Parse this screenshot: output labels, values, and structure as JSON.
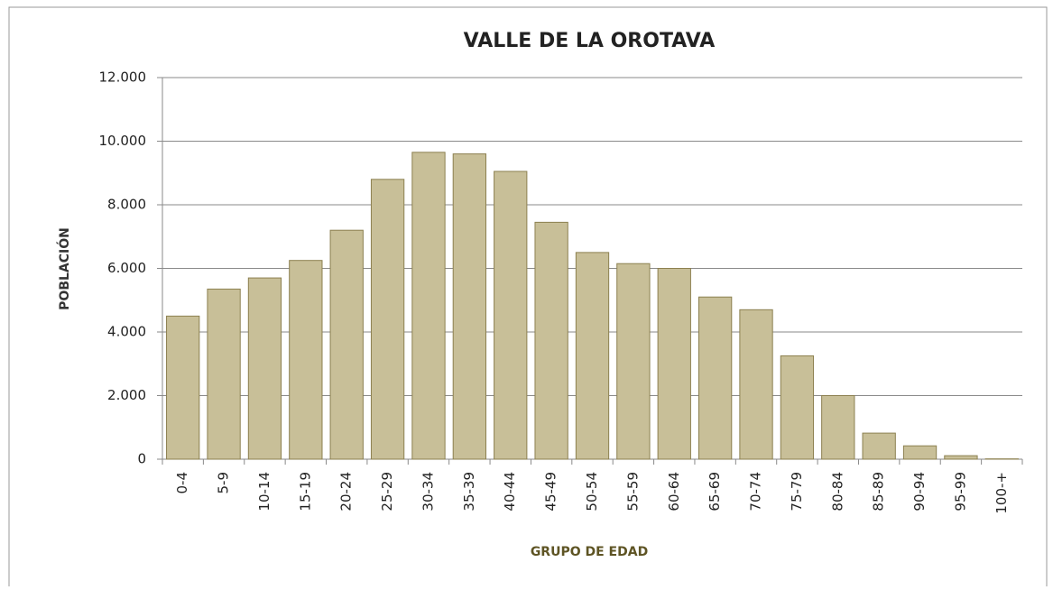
{
  "chart_data": {
    "type": "bar",
    "title": "VALLE DE LA OROTAVA",
    "x_label": "GRUPO DE EDAD",
    "y_label": "POBLACIÓN",
    "categories": [
      "0-4",
      "5-9",
      "10-14",
      "15-19",
      "20-24",
      "25-29",
      "30-34",
      "35-39",
      "40-44",
      "45-49",
      "50-54",
      "55-59",
      "60-64",
      "65-69",
      "70-74",
      "75-79",
      "80-84",
      "85-89",
      "90-94",
      "95-99",
      "100-+"
    ],
    "values": [
      4500,
      5350,
      5700,
      6250,
      7200,
      8800,
      9650,
      9600,
      9050,
      7450,
      6500,
      6150,
      6000,
      5100,
      4700,
      3250,
      2000,
      820,
      420,
      110,
      10
    ],
    "color": "#c8bf98",
    "ylim": [
      0,
      12000
    ],
    "yticks": [
      0,
      {
        "value": 2000,
        "label": "2.000"
      },
      {
        "value": 4000,
        "label": "4.000"
      },
      {
        "value": 6000,
        "label": "6.000"
      },
      {
        "value": 8000,
        "label": "8.000"
      },
      {
        "value": 10000,
        "label": "10.000"
      },
      {
        "value": 12000,
        "label": "12.000"
      }
    ],
    "grid": true
  }
}
